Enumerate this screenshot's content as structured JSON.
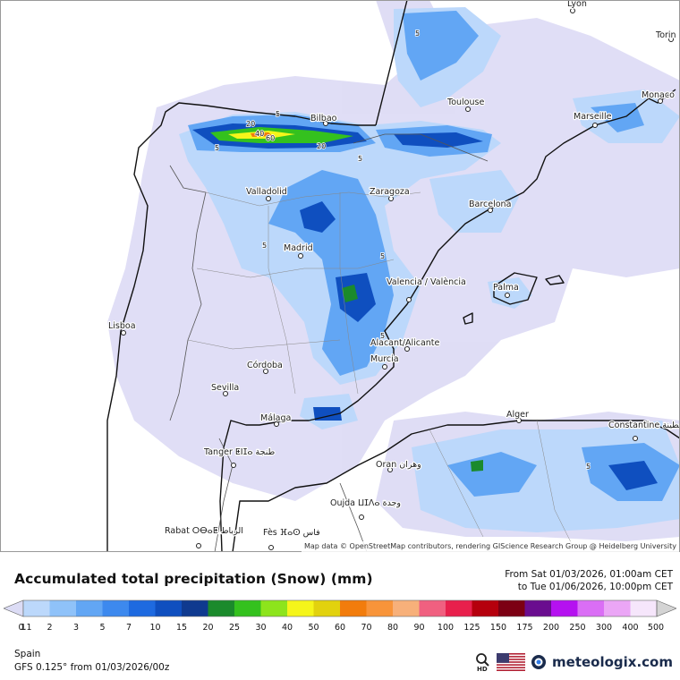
{
  "title": "Accumulated total precipitation (Snow) (mm)",
  "valid_from": "From Sat 01/03/2026, 01:00am CET",
  "valid_to": "to Tue 01/06/2026, 10:00pm CET",
  "region": "Spain",
  "model": "GFS 0.125° from  01/03/2026/00z",
  "attribution": "Map data © OpenStreetMap contributors, rendering GIScience Research Group @ Heidelberg University",
  "brand": "meteologix.com",
  "hd_label": "HD",
  "icons": [
    "zoom-hd-icon",
    "us-flag-icon",
    "meteologix-logo-icon"
  ],
  "legend": [
    {
      "v": "0.1",
      "c": "#dcdcf5"
    },
    {
      "v": "1",
      "c": "#bcd8fb"
    },
    {
      "v": "2",
      "c": "#8fc2f9"
    },
    {
      "v": "3",
      "c": "#62a6f4"
    },
    {
      "v": "5",
      "c": "#3d89ee"
    },
    {
      "v": "7",
      "c": "#1e6ae0"
    },
    {
      "v": "10",
      "c": "#0f4fbf"
    },
    {
      "v": "15",
      "c": "#0f3a8f"
    },
    {
      "v": "20",
      "c": "#1b8a2c"
    },
    {
      "v": "25",
      "c": "#34c11e"
    },
    {
      "v": "30",
      "c": "#8de41c"
    },
    {
      "v": "40",
      "c": "#f5f51a"
    },
    {
      "v": "50",
      "c": "#e2d20e"
    },
    {
      "v": "60",
      "c": "#f27c0c"
    },
    {
      "v": "70",
      "c": "#f8943a"
    },
    {
      "v": "80",
      "c": "#f7b07a"
    },
    {
      "v": "90",
      "c": "#f06080"
    },
    {
      "v": "100",
      "c": "#e8204c"
    },
    {
      "v": "125",
      "c": "#b5000d"
    },
    {
      "v": "150",
      "c": "#7c0013"
    },
    {
      "v": "175",
      "c": "#6a0d8f"
    },
    {
      "v": "200",
      "c": "#b511f0"
    },
    {
      "v": "250",
      "c": "#da6ef5"
    },
    {
      "v": "300",
      "c": "#eba6f6"
    },
    {
      "v": "400",
      "c": "#f6e6fb"
    },
    {
      "v": "500",
      "c": "#d4d4d4"
    }
  ],
  "cities": [
    {
      "name": "Bilbao"
    },
    {
      "name": "Toulouse"
    },
    {
      "name": "Marseille"
    },
    {
      "name": "Monaco"
    },
    {
      "name": "Torin"
    },
    {
      "name": "Lyon"
    },
    {
      "name": "Valladolid"
    },
    {
      "name": "Zaragoza"
    },
    {
      "name": "Barcelona"
    },
    {
      "name": "Madrid"
    },
    {
      "name": "Valencia / València"
    },
    {
      "name": "Palma"
    },
    {
      "name": "Lisboa"
    },
    {
      "name": "Alacant/Alicante"
    },
    {
      "name": "Murcia"
    },
    {
      "name": "Córdoba"
    },
    {
      "name": "Sevilla"
    },
    {
      "name": "Málaga"
    },
    {
      "name": "Tanger ⵟⵏⵊⴰ طنجة"
    },
    {
      "name": "Alger"
    },
    {
      "name": "Constantine قسنطينة"
    },
    {
      "name": "Oran وهران"
    },
    {
      "name": "Oujda ⵡⵊⴷⴰ وجدة"
    },
    {
      "name": "Rabat ⵔⴱⴰⵟ الرباط"
    },
    {
      "name": "Fès ⴼⴰⵙ فاس"
    }
  ],
  "contour_labels": [
    "5",
    "5",
    "5",
    "5",
    "5",
    "5",
    "5",
    "5",
    "20",
    "20",
    "40",
    "60"
  ]
}
